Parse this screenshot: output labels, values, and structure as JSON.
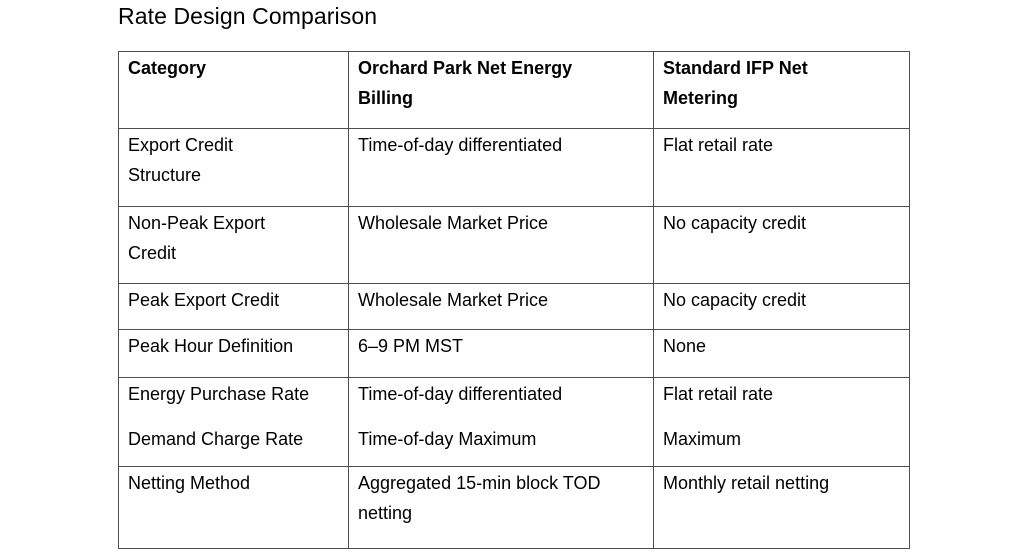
{
  "title": "Rate Design Comparison",
  "colors": {
    "text": "#000000",
    "border": "#4d4d4d",
    "background": "#ffffff"
  },
  "table": {
    "headers": [
      "Category",
      "Orchard Park Net Energy\nBilling",
      "Standard IFP Net\nMetering"
    ],
    "rows": [
      {
        "cells": [
          [
            "Export Credit\nStructure"
          ],
          [
            "Time-of-day differentiated"
          ],
          [
            "Flat retail rate"
          ]
        ]
      },
      {
        "cells": [
          [
            "Non-Peak Export\nCredit"
          ],
          [
            "Wholesale Market Price"
          ],
          [
            "No capacity credit"
          ]
        ]
      },
      {
        "cells": [
          [
            "Peak Export Credit"
          ],
          [
            "Wholesale Market Price"
          ],
          [
            "No capacity credit"
          ]
        ]
      },
      {
        "cells": [
          [
            "Peak Hour Definition"
          ],
          [
            "6–9 PM MST"
          ],
          [
            "None"
          ]
        ]
      },
      {
        "cells": [
          [
            "Energy Purchase Rate",
            "Demand Charge Rate"
          ],
          [
            "Time-of-day differentiated",
            "Time-of-day Maximum"
          ],
          [
            "Flat retail rate",
            "Maximum"
          ]
        ]
      },
      {
        "cells": [
          [
            "Netting Method"
          ],
          [
            "Aggregated 15-min block TOD\nnetting"
          ],
          [
            "Monthly retail netting"
          ]
        ]
      }
    ]
  }
}
